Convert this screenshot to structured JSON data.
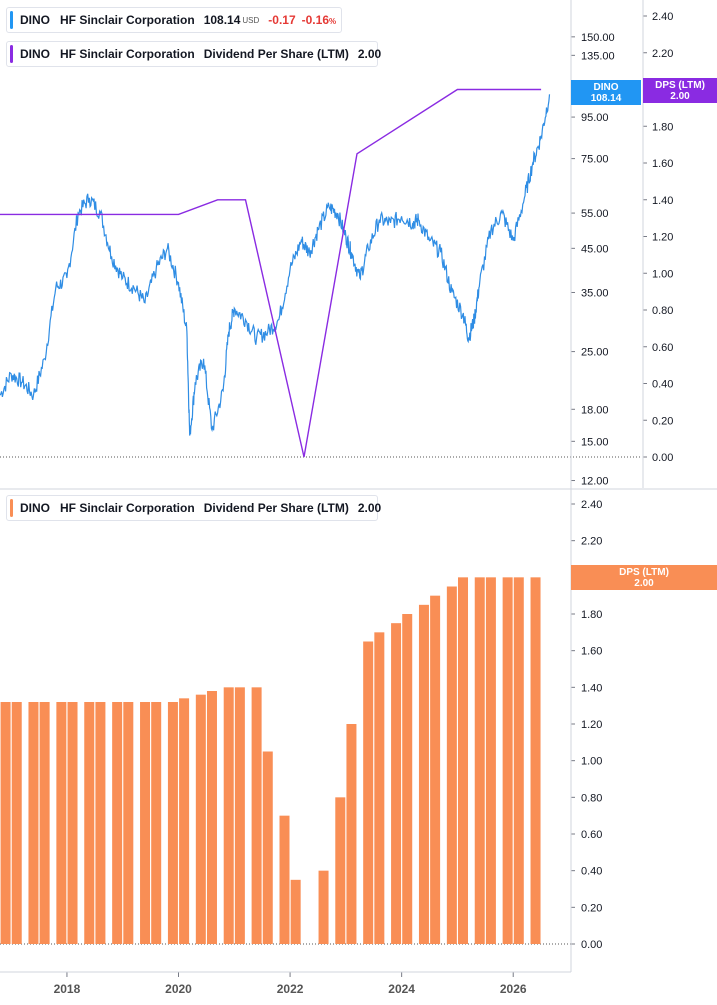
{
  "colors": {
    "price": "#2f8de4",
    "dps_line": "#8a2be2",
    "dps_bar": "#f98e55",
    "negative": "#e53935",
    "price_tag": "#2196f3",
    "dps_tag_top": "#8a2be2",
    "dps_tag_bottom": "#f98e55"
  },
  "legend_price": {
    "ticker": "DINO",
    "company": "HF Sinclair Corporation",
    "price": "108.14",
    "currency": "USD",
    "change": "-0.17",
    "change_pct": "-0.16",
    "pct_sign": "%"
  },
  "legend_dps_line": {
    "ticker": "DINO",
    "company": "HF Sinclair Corporation",
    "metric": "Dividend Per Share (LTM)",
    "value": "2.00"
  },
  "legend_dps_bar": {
    "ticker": "DINO",
    "company": "HF Sinclair Corporation",
    "metric": "Dividend Per Share (LTM)",
    "value": "2.00"
  },
  "tags": {
    "price_ticker": "DINO",
    "price_value": "108.14",
    "dps_top_label": "DPS (LTM)",
    "dps_top_value": "2.00",
    "dps_bottom_label": "DPS (LTM)",
    "dps_bottom_value": "2.00"
  },
  "chart_data": [
    {
      "type": "line",
      "panel": "top",
      "title": "",
      "y_scale": "log",
      "ylim": [
        11.5,
        185
      ],
      "y_ticks": [
        "12.00",
        "15.00",
        "18.00",
        "25.00",
        "35.00",
        "45.00",
        "55.00",
        "75.00",
        "95.00",
        "115.00",
        "135.00",
        "150.00"
      ],
      "series": [
        {
          "name": "HF Sinclair Corporation",
          "axis": "price",
          "x": [
            2016.8,
            2017.0,
            2017.2,
            2017.4,
            2017.6,
            2017.8,
            2018.0,
            2018.2,
            2018.4,
            2018.6,
            2018.8,
            2019.0,
            2019.2,
            2019.4,
            2019.6,
            2019.8,
            2020.0,
            2020.15,
            2020.2,
            2020.3,
            2020.45,
            2020.6,
            2020.8,
            2020.9,
            2021.0,
            2021.2,
            2021.4,
            2021.6,
            2021.8,
            2022.0,
            2022.2,
            2022.35,
            2022.5,
            2022.7,
            2022.85,
            2023.0,
            2023.1,
            2023.25,
            2023.4,
            2023.6,
            2023.8,
            2024.0,
            2024.2,
            2024.3,
            2024.5,
            2024.7,
            2024.9,
            2025.1,
            2025.2,
            2025.3,
            2025.4,
            2025.6,
            2025.8,
            2026.0,
            2026.2,
            2026.35,
            2026.5,
            2026.65
          ],
          "values": [
            19.5,
            22.0,
            21.0,
            19.5,
            24.0,
            36.0,
            38.0,
            55.0,
            60.0,
            55.0,
            43.0,
            38.0,
            36.0,
            33.0,
            40.0,
            45.0,
            37.0,
            28.0,
            15.5,
            21.0,
            24.0,
            16.0,
            20.0,
            28.0,
            32.0,
            30.0,
            27.0,
            28.0,
            30.0,
            40.0,
            47.0,
            44.0,
            50.0,
            57.0,
            55.0,
            48.0,
            44.0,
            38.0,
            45.0,
            53.0,
            52.0,
            54.0,
            52.0,
            53.0,
            47.0,
            44.0,
            35.0,
            31.0,
            27.0,
            30.0,
            37.0,
            50.0,
            55.0,
            47.0,
            60.0,
            73.0,
            85.0,
            108.14
          ]
        },
        {
          "name": "Dividend Per Share (LTM)",
          "axis": "dps",
          "x": [
            2016.8,
            2018.3,
            2020.0,
            2020.7,
            2021.2,
            2022.25,
            2023.2,
            2025.0,
            2026.5
          ],
          "values": [
            1.32,
            1.32,
            1.32,
            1.4,
            1.4,
            0.0,
            1.65,
            2.0,
            2.0
          ]
        }
      ],
      "dps_y_ticks": [
        "0.00",
        "0.20",
        "0.40",
        "0.60",
        "0.80",
        "1.00",
        "1.20",
        "1.40",
        "1.60",
        "1.80",
        "2.00",
        "2.20",
        "2.40"
      ],
      "dps_ylim": [
        0,
        2.5
      ]
    },
    {
      "type": "bar",
      "panel": "bottom",
      "title": "",
      "series": [
        {
          "name": "Dividend Per Share (LTM)"
        }
      ],
      "categories": [
        "2016.9",
        "2017.1",
        "2017.4",
        "2017.6",
        "2017.9",
        "2018.1",
        "2018.4",
        "2018.6",
        "2018.9",
        "2019.1",
        "2019.4",
        "2019.6",
        "2019.9",
        "2020.1",
        "2020.4",
        "2020.6",
        "2020.9",
        "2021.1",
        "2021.4",
        "2021.6",
        "2021.9",
        "2022.1",
        "2022.4",
        "2022.6",
        "2022.9",
        "2023.1",
        "2023.4",
        "2023.6",
        "2023.9",
        "2024.1",
        "2024.4",
        "2024.6",
        "2024.9",
        "2025.1",
        "2025.4",
        "2025.6",
        "2025.9",
        "2026.1",
        "2026.4"
      ],
      "values": [
        1.32,
        1.32,
        1.32,
        1.32,
        1.32,
        1.32,
        1.32,
        1.32,
        1.32,
        1.32,
        1.32,
        1.32,
        1.32,
        1.34,
        1.36,
        1.38,
        1.4,
        1.4,
        1.4,
        1.05,
        0.7,
        0.35,
        0.0,
        0.4,
        0.8,
        1.2,
        1.65,
        1.7,
        1.75,
        1.8,
        1.85,
        1.9,
        1.95,
        2.0,
        2.0,
        2.0,
        2.0,
        2.0,
        2.0
      ],
      "xlim": [
        2016.8,
        2027.0
      ],
      "x_ticks": [
        "2018",
        "2020",
        "2022",
        "2024",
        "2026"
      ],
      "ylim": [
        0,
        2.5
      ],
      "y_ticks": [
        "0.00",
        "0.20",
        "0.40",
        "0.60",
        "0.80",
        "1.00",
        "1.20",
        "1.40",
        "1.60",
        "1.80",
        "2.00",
        "2.20",
        "2.40"
      ]
    }
  ]
}
